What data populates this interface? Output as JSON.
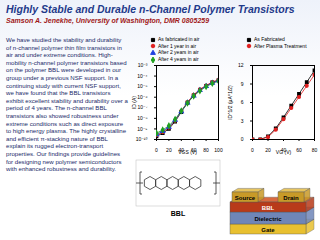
{
  "header": {
    "title": "Highly Stable and Durable n-Channel Polymer Transistors",
    "subtitle": "Samson A. Jenekhe, University of Washington, DMR 0805259"
  },
  "body": {
    "text": "We have studied the stability and durability of n-channel polymer thin film transistors in air and under extreme conditions. High-mobility n-channel polymer transistors based on the polymer BBL were developed in our group under a previous NSF support. In a continuing study with current NSF support, we have found that the BBL transistors exhibit excellent stability and durability over a period of 4 years. The n-channel BBL transistors also showed robustness under extreme conditions such as direct exposure to high energy plasma. The highly crystalline and efficient π-stacking nature of BBL explain its rugged electron-transport properties. Our findings provide guidelines for designing new polymer semiconductors with enhanced robustness and durability."
  },
  "chart_data": [
    {
      "type": "line",
      "xlabel": "VGS (V)",
      "ylabel": "ID (A)",
      "log": "y",
      "grid": false,
      "x": [
        0,
        10,
        20,
        30,
        40,
        50,
        60,
        70,
        80,
        90,
        100
      ],
      "xlim": [
        0,
        100
      ],
      "xticks": [
        0,
        20,
        40,
        60,
        80,
        100
      ],
      "ylim": [
        1e-10,
        0.001
      ],
      "yticks": [
        {
          "value": 1e-10,
          "label": "10⁻¹⁰"
        },
        {
          "value": 1e-09,
          "label": "10⁻⁹"
        },
        {
          "value": 1e-08,
          "label": "10⁻⁸"
        },
        {
          "value": 1e-07,
          "label": "10⁻⁷"
        },
        {
          "value": 1e-06,
          "label": "10⁻⁶"
        },
        {
          "value": 1e-05,
          "label": "10⁻⁵"
        },
        {
          "value": 0.0001,
          "label": "10⁻⁴"
        },
        {
          "value": 0.001,
          "label": "10⁻³"
        }
      ],
      "series": [
        {
          "name": "As fabricated in air",
          "color": "#000000",
          "marker": "square",
          "values": [
            2e-10,
            4e-10,
            1e-09,
            5e-09,
            4e-08,
            3e-07,
            1.5e-06,
            5e-06,
            1.2e-05,
            2.5e-05,
            4e-05
          ]
        },
        {
          "name": "After 1 year in air",
          "color": "#e02020",
          "marker": "circle",
          "values": [
            2.5e-10,
            5e-10,
            1.3e-09,
            6e-09,
            5e-08,
            3.5e-07,
            1.7e-06,
            5.5e-06,
            1.3e-05,
            2.7e-05,
            4.5e-05
          ]
        },
        {
          "name": "After 2 years in air",
          "color": "#2040e0",
          "marker": "triangle",
          "values": [
            3e-10,
            6e-10,
            1.5e-09,
            7e-09,
            4.5e-08,
            3e-07,
            1.4e-06,
            4.5e-06,
            1.1e-05,
            2.2e-05,
            3.8e-05
          ]
        },
        {
          "name": "After 4 years in air",
          "color": "#20a020",
          "marker": "diamond",
          "values": [
            4e-10,
            8e-10,
            2e-09,
            8e-09,
            5e-08,
            2.8e-07,
            1.3e-06,
            4e-06,
            1e-05,
            2e-05,
            3.5e-05
          ]
        }
      ]
    },
    {
      "type": "line",
      "xlabel": "VG (V)",
      "ylabel": "ID^1/2 (μA^1/2)",
      "grid": false,
      "x": [
        0,
        10,
        20,
        30,
        40,
        50,
        60,
        70,
        80
      ],
      "xlim": [
        0,
        80
      ],
      "xticks": [
        0,
        20,
        40,
        60,
        80
      ],
      "ylim": [
        0,
        12
      ],
      "yticks": [
        0,
        3,
        6,
        9,
        12
      ],
      "series": [
        {
          "name": "As Fabricated",
          "color": "#000000",
          "marker": "square",
          "values": [
            0,
            0,
            0.5,
            1.8,
            3.6,
            5.5,
            7.4,
            9.3,
            11.2
          ]
        },
        {
          "name": "After Plasma Treatment",
          "color": "#e02020",
          "marker": "circle",
          "values": [
            0,
            0,
            0.4,
            1.6,
            3.3,
            5.1,
            6.9,
            8.7,
            10.5
          ]
        }
      ]
    }
  ],
  "figure": {
    "molecule_label": "BBL",
    "device": {
      "source": "Source",
      "semiconductor": "BBL",
      "drain": "Drain",
      "dielectric": "Dielectric",
      "gate": "Gate"
    }
  }
}
